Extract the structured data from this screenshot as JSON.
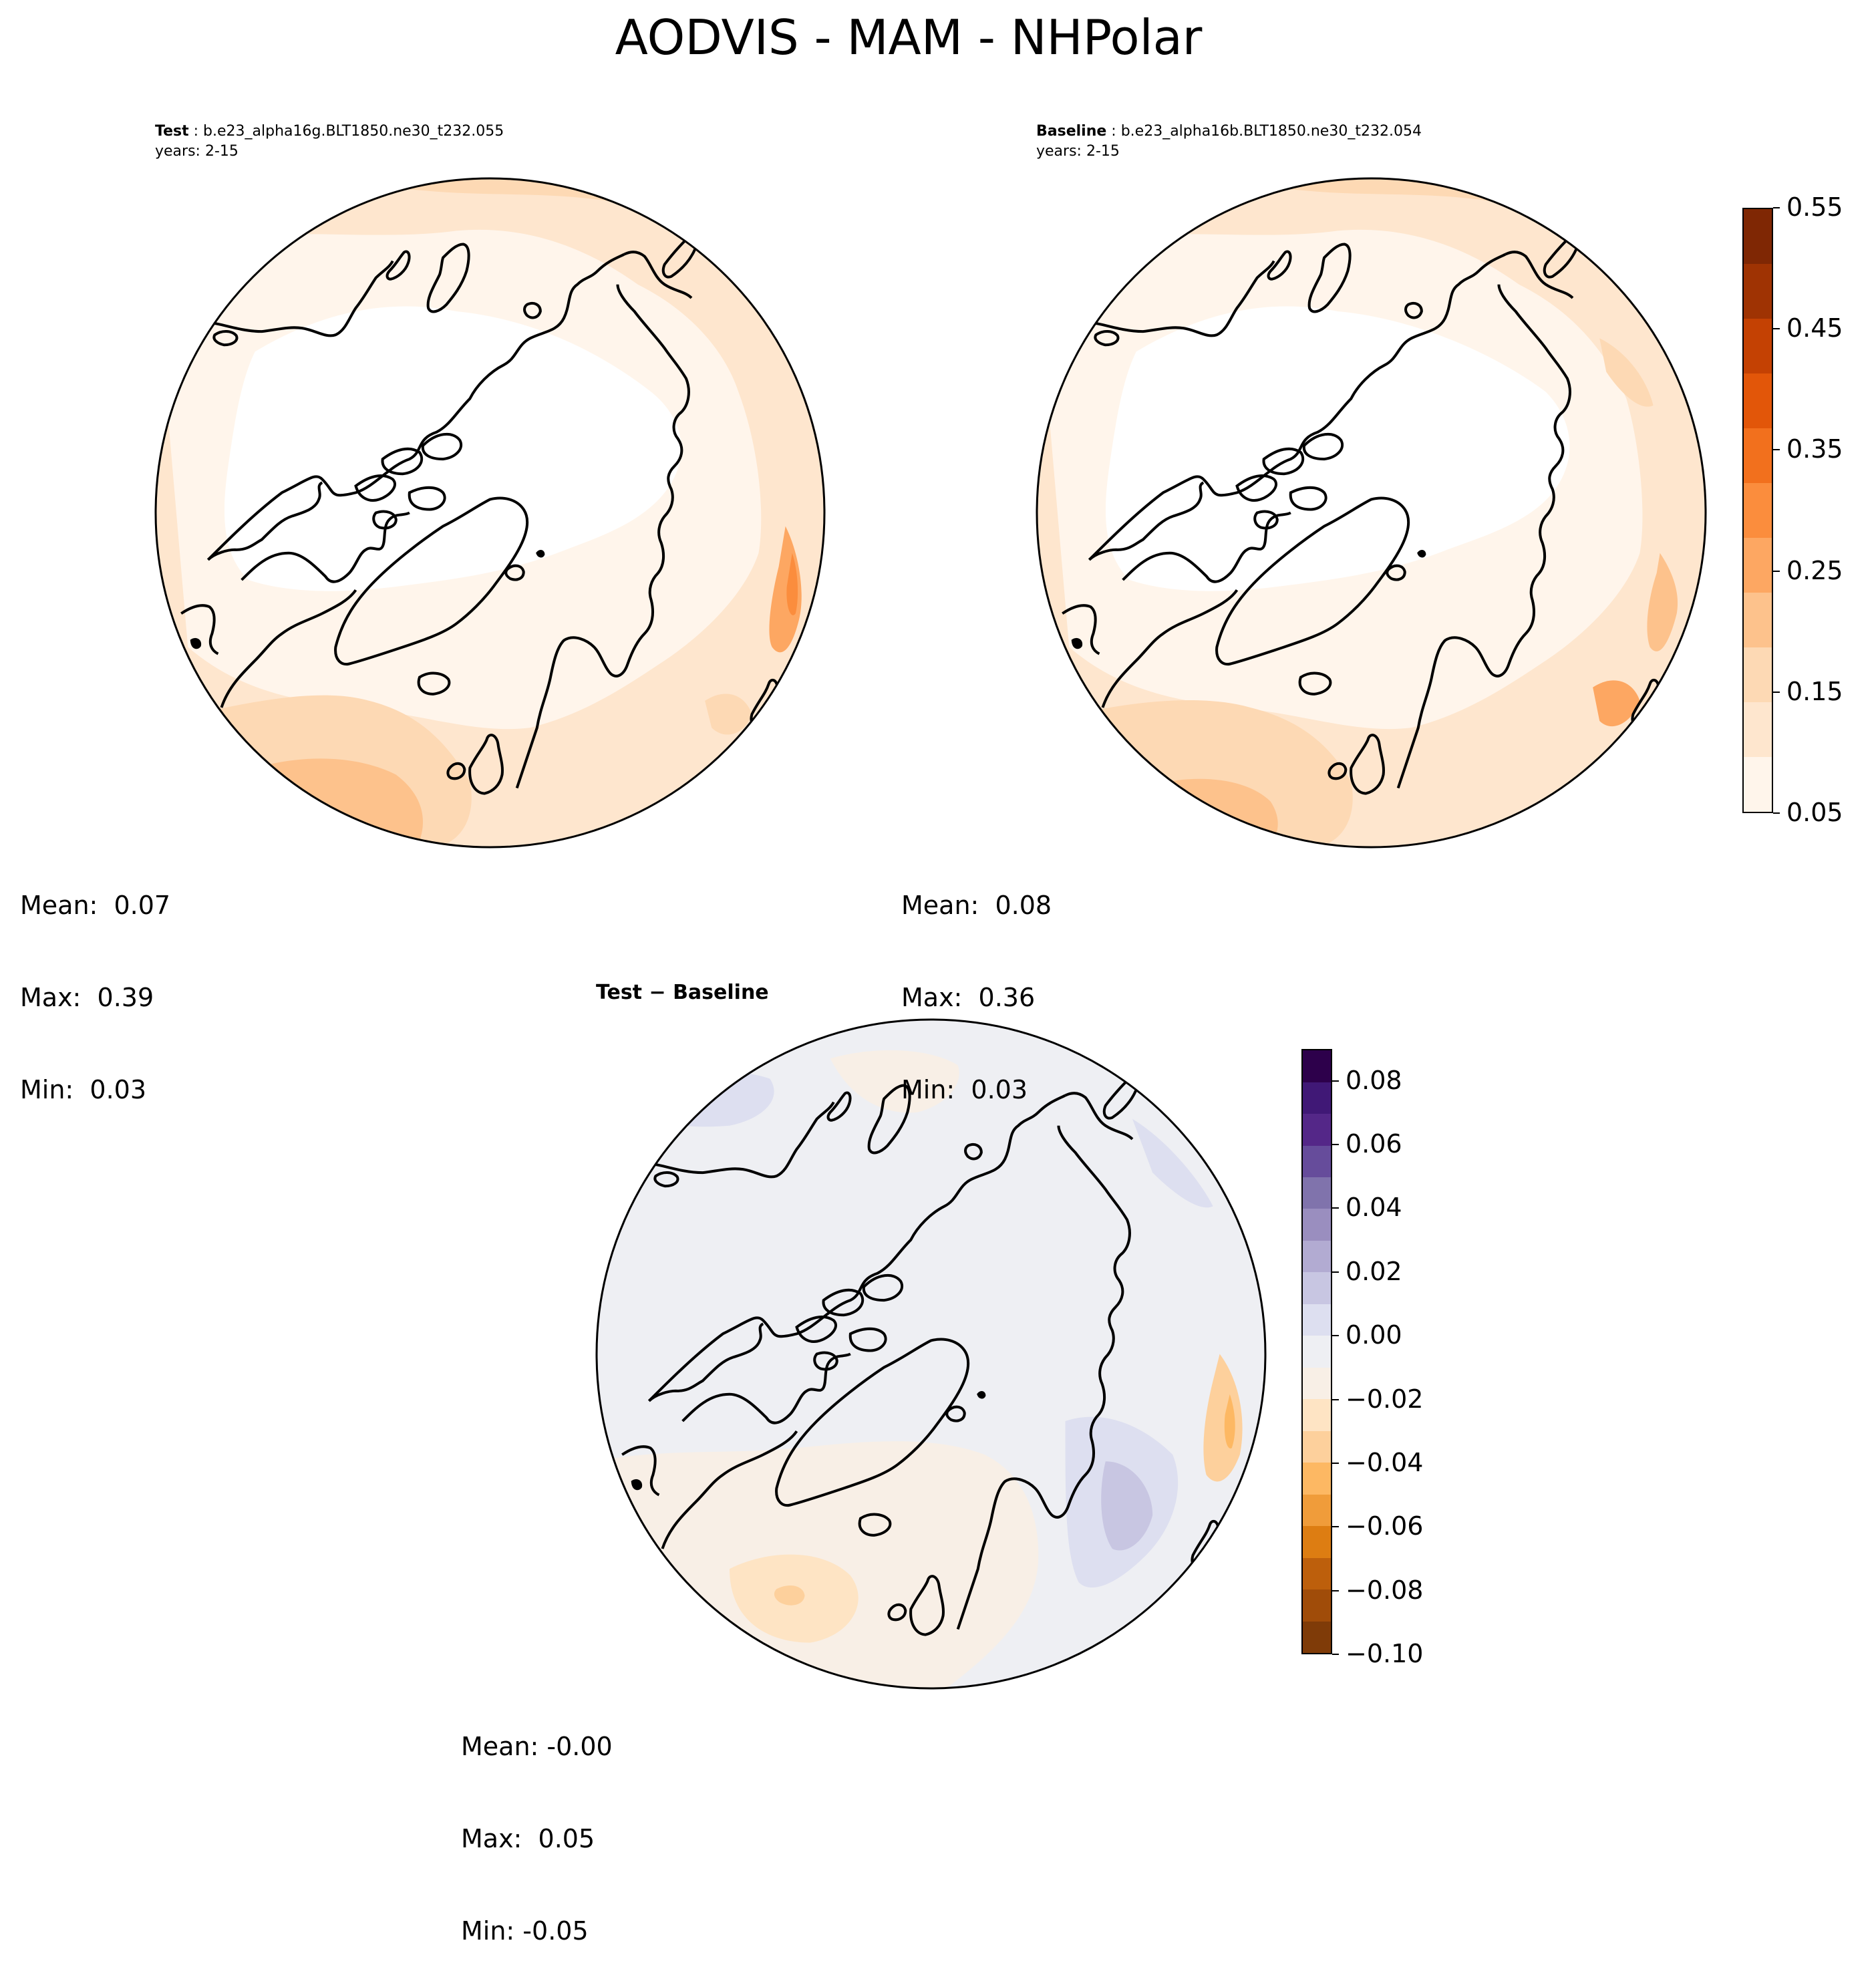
{
  "figure": {
    "title": "AODVIS - MAM - NHPolar"
  },
  "panels": {
    "test": {
      "label": "Test",
      "case": "b.e23_alpha16g.BLT1850.ne30_t232.055",
      "years": "years: 2-15",
      "mean": "Mean:  0.07",
      "max": "Max:  0.39",
      "min": "Min:  0.03"
    },
    "baseline": {
      "label": "Baseline",
      "case": "b.e23_alpha16b.BLT1850.ne30_t232.054",
      "years": "years: 2-15",
      "mean": "Mean:  0.08",
      "max": "Max:  0.36",
      "min": "Min:  0.03"
    },
    "diff": {
      "title_left": "Test",
      "title_sep": " − ",
      "title_right": "Baseline",
      "mean": "Mean: -0.00",
      "max": "Max:  0.05",
      "min": "Min: -0.05"
    }
  },
  "colorbars": {
    "main": {
      "ticks": [
        "0.55",
        "0.45",
        "0.35",
        "0.25",
        "0.15",
        "0.05"
      ],
      "colors": [
        "#fff5eb",
        "#fee6ce",
        "#fdd9b4",
        "#fdc28c",
        "#fda762",
        "#fb8d3d",
        "#f2701d",
        "#e25609",
        "#c44103",
        "#9f3303",
        "#7f2704"
      ]
    },
    "diff": {
      "ticks": [
        "0.08",
        "0.06",
        "0.04",
        "0.02",
        "0.00",
        "−0.02",
        "−0.04",
        "−0.06",
        "−0.08",
        "−0.10"
      ],
      "colors": [
        "#7f3b08",
        "#a04c09",
        "#bd5f0c",
        "#dd7d12",
        "#f09c3a",
        "#fdb863",
        "#fdd09c",
        "#fee4c4",
        "#f8efe6",
        "#eeeff3",
        "#dddff0",
        "#c8c6e2",
        "#b2abd2",
        "#9a8ebf",
        "#8073ac",
        "#664c9b",
        "#542788",
        "#401876",
        "#2d004b"
      ]
    }
  }
}
